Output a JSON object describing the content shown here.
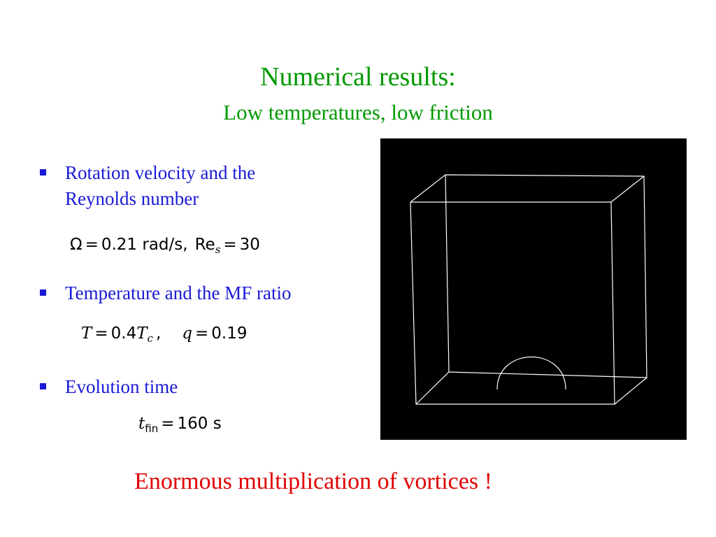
{
  "slide": {
    "title": "Numerical results:",
    "subtitle": "Low temperatures, low friction",
    "title_color": "#009900",
    "bullet_color": "#1a1ad6",
    "footer_color": "#e00000"
  },
  "bullets": [
    {
      "line1": "Rotation velocity and the",
      "line2": "Reynolds number",
      "formula": {
        "omega_symbol": "Ω",
        "eq1": "=",
        "omega_value": "0.21 rad/s",
        "sep": ",",
        "re_base": "Re",
        "re_sub": "s",
        "eq2": "=",
        "re_value": "30"
      }
    },
    {
      "line1": "Temperature and the MF ratio",
      "formula": {
        "t_symbol": "T",
        "eq1": "=",
        "t_coef": "0.4",
        "tc_symbol": "T",
        "tc_sub": "c",
        "sep": ",",
        "q_symbol": "q",
        "eq2": "=",
        "q_value": "0.19"
      }
    },
    {
      "line1": "Evolution time",
      "formula": {
        "t_symbol": "t",
        "t_sub": "fin",
        "eq": "=",
        "t_value": "160 s"
      }
    }
  ],
  "simulation": {
    "background": "#000000",
    "line_color": "#ffffff"
  },
  "footer": "Enormous multiplication of vortices !"
}
